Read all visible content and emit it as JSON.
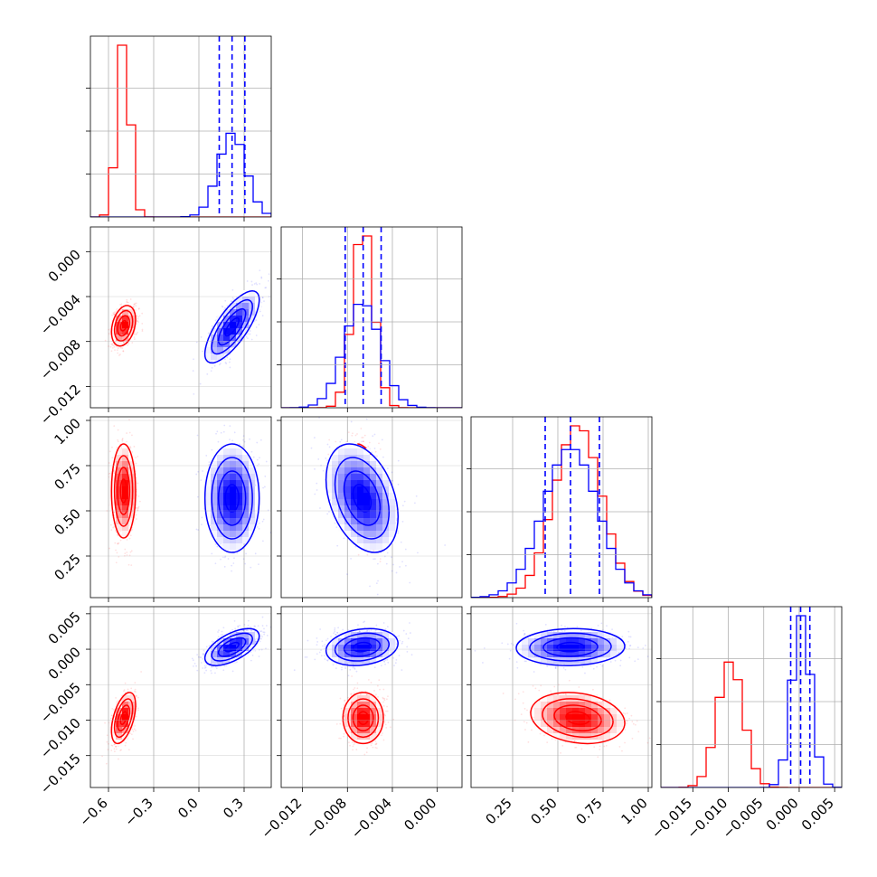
{
  "chart_data": {
    "type": "corner",
    "title": "",
    "grid": true,
    "colors": {
      "red": "#ff0000",
      "blue": "#0000ff"
    },
    "parameters": [
      {
        "index": 0,
        "xlim": [
          -0.72,
          0.48
        ],
        "ticks": [
          -0.6,
          -0.3,
          0.0,
          0.3
        ],
        "tick_labels": [
          "−0.6",
          "−0.3",
          "0.0",
          "0.3"
        ]
      },
      {
        "index": 1,
        "xlim": [
          -0.0139,
          0.0022
        ],
        "ticks": [
          -0.012,
          -0.008,
          -0.004,
          0.0
        ],
        "tick_labels": [
          "−0.012",
          "−0.008",
          "−0.004",
          "0.000"
        ]
      },
      {
        "index": 2,
        "xlim": [
          0.02,
          1.02
        ],
        "ticks": [
          0.25,
          0.5,
          0.75,
          1.0
        ],
        "tick_labels": [
          "0.25",
          "0.50",
          "0.75",
          "1.00"
        ]
      },
      {
        "index": 3,
        "xlim": [
          -0.0195,
          0.006
        ],
        "ticks": [
          -0.015,
          -0.01,
          -0.005,
          0.0,
          0.005
        ],
        "tick_labels": [
          "−0.015",
          "−0.010",
          "−0.005",
          "0.000",
          "0.005"
        ]
      }
    ],
    "series": [
      {
        "name": "",
        "color": "#ff0000",
        "marginals": [
          {
            "mean": -0.5,
            "std": 0.04
          },
          {
            "mean": -0.0066,
            "std": 0.0009
          },
          {
            "mean": 0.61,
            "std": 0.13
          },
          {
            "mean": -0.0097,
            "std": 0.0018
          }
        ],
        "correlations": {
          "0-1": 0.3,
          "0-2": 0.0,
          "0-3": 0.5,
          "1-2": -0.3,
          "1-3": 0.0,
          "2-3": -0.2
        }
      },
      {
        "name": "",
        "color": "#0000ff",
        "marginals": [
          {
            "mean": 0.22,
            "std": 0.09
          },
          {
            "mean": -0.0067,
            "std": 0.0016
          },
          {
            "mean": 0.57,
            "std": 0.15
          },
          {
            "mean": 0.0003,
            "std": 0.0013
          }
        ],
        "correlations": {
          "0-1": 0.75,
          "0-2": 0.0,
          "0-3": 0.6,
          "1-2": -0.35,
          "1-3": 0.2,
          "2-3": 0.05
        }
      }
    ],
    "quantile_lines": [
      {
        "param": 0,
        "color": "#0000ff",
        "values": [
          0.135,
          0.22,
          0.305
        ]
      },
      {
        "param": 1,
        "color": "#0000ff",
        "values": [
          -0.0082,
          -0.0066,
          -0.005
        ]
      },
      {
        "param": 2,
        "color": "#0000ff",
        "values": [
          0.43,
          0.57,
          0.73
        ]
      },
      {
        "param": 3,
        "color": "#0000ff",
        "values": [
          -0.0012,
          0.0002,
          0.0015
        ]
      }
    ]
  }
}
